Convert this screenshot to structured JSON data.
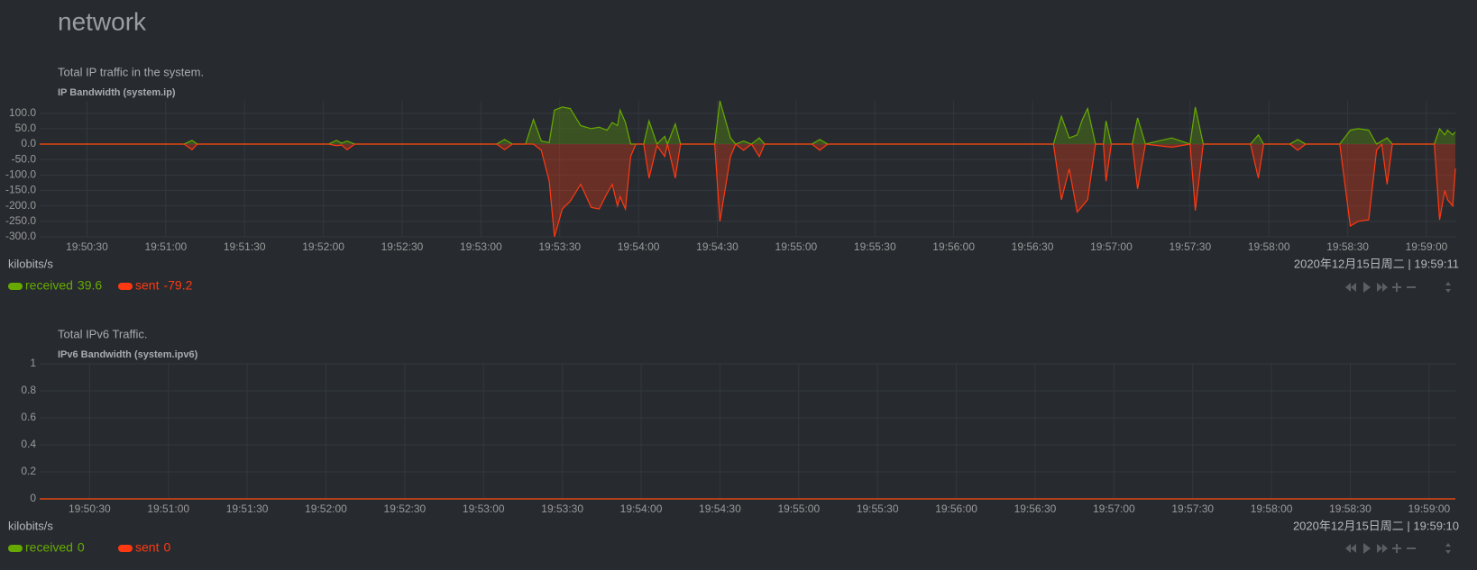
{
  "section_title": "network",
  "chart_data": [
    {
      "type": "area",
      "description": "Total IP traffic in the system.",
      "title": "IP Bandwidth (system.ip)",
      "units": "kilobits/s",
      "timestamp": "2020年12月15日周二 | 19:59:11",
      "x": [
        "19:50:12",
        "19:51:07",
        "19:51:10",
        "19:51:12",
        "19:52:02",
        "19:52:05",
        "19:52:07",
        "19:52:09",
        "19:52:12",
        "19:53:06",
        "19:53:09",
        "19:53:12",
        "19:53:17",
        "19:53:20",
        "19:53:23",
        "19:53:26",
        "19:53:28",
        "19:53:31",
        "19:53:34",
        "19:53:38",
        "19:53:42",
        "19:53:45",
        "19:53:48",
        "19:53:50",
        "19:53:52",
        "19:53:53",
        "19:53:55",
        "19:53:57",
        "19:53:59",
        "19:54:02",
        "19:54:04",
        "19:54:07",
        "19:54:10",
        "19:54:11",
        "19:54:14",
        "19:54:16",
        "19:54:29",
        "19:54:31",
        "19:54:35",
        "19:54:37",
        "19:54:40",
        "19:54:43",
        "19:54:46",
        "19:54:48",
        "19:55:06",
        "19:55:09",
        "19:55:12",
        "19:56:38",
        "19:56:41",
        "19:56:44",
        "19:56:47",
        "19:56:49",
        "19:56:51",
        "19:56:54",
        "19:56:57",
        "19:56:58",
        "19:57:00",
        "19:57:08",
        "19:57:10",
        "19:57:13",
        "19:57:23",
        "19:57:30",
        "19:57:32",
        "19:57:35",
        "19:57:53",
        "19:57:56",
        "19:57:58",
        "19:58:08",
        "19:58:11",
        "19:58:14",
        "19:58:27",
        "19:58:31",
        "19:58:34",
        "19:58:38",
        "19:58:41",
        "19:58:43",
        "19:58:45",
        "19:58:47",
        "19:59:03",
        "19:59:05",
        "19:59:07",
        "19:59:08",
        "19:59:10",
        "19:59:11"
      ],
      "xlim": [
        "19:50:12",
        "19:59:11"
      ],
      "xticks": [
        "19:50:30",
        "19:51:00",
        "19:51:30",
        "19:52:00",
        "19:52:30",
        "19:53:00",
        "19:53:30",
        "19:54:00",
        "19:54:30",
        "19:55:00",
        "19:55:30",
        "19:56:00",
        "19:56:30",
        "19:57:00",
        "19:57:30",
        "19:58:00",
        "19:58:30",
        "19:59:00"
      ],
      "ylim": [
        -300,
        140
      ],
      "yticks": [
        {
          "value": 100,
          "label": "100.0"
        },
        {
          "value": 50,
          "label": "50.0"
        },
        {
          "value": 0,
          "label": "0.0"
        },
        {
          "value": -50,
          "label": "-50.0"
        },
        {
          "value": -100,
          "label": "-100.0"
        },
        {
          "value": -150,
          "label": "-150.0"
        },
        {
          "value": -200,
          "label": "-200.0"
        },
        {
          "value": -250,
          "label": "-250.0"
        },
        {
          "value": -300,
          "label": "-300.0"
        }
      ],
      "grid": true,
      "series": [
        {
          "name": "received",
          "color": "#66aa00",
          "current": 39.6,
          "values": [
            0,
            0,
            12,
            0,
            0,
            12,
            3,
            10,
            0,
            0,
            15,
            0,
            0,
            80,
            10,
            5,
            110,
            120,
            115,
            60,
            50,
            55,
            45,
            70,
            60,
            110,
            70,
            0,
            0,
            0,
            75,
            0,
            25,
            0,
            65,
            0,
            0,
            140,
            20,
            0,
            10,
            0,
            20,
            0,
            0,
            15,
            0,
            0,
            90,
            20,
            30,
            80,
            115,
            0,
            0,
            75,
            0,
            0,
            85,
            0,
            20,
            0,
            120,
            0,
            0,
            30,
            0,
            0,
            15,
            0,
            0,
            45,
            50,
            45,
            0,
            10,
            20,
            0,
            0,
            50,
            30,
            45,
            30,
            39.6
          ]
        },
        {
          "name": "sent",
          "color": "#fe3912",
          "current": -79.2,
          "values": [
            0,
            0,
            -18,
            0,
            0,
            -5,
            -3,
            -18,
            0,
            0,
            -18,
            0,
            0,
            0,
            -20,
            -120,
            -300,
            -210,
            -185,
            -130,
            -205,
            -210,
            -160,
            -130,
            -200,
            -170,
            -210,
            -40,
            0,
            0,
            -110,
            -5,
            -40,
            0,
            -110,
            0,
            0,
            -250,
            -40,
            0,
            -20,
            0,
            -40,
            0,
            0,
            -20,
            0,
            0,
            -180,
            -80,
            -220,
            -200,
            -180,
            0,
            0,
            -120,
            0,
            0,
            -145,
            0,
            -10,
            0,
            -215,
            0,
            0,
            -110,
            0,
            0,
            -20,
            0,
            0,
            -265,
            -250,
            -245,
            -20,
            0,
            -130,
            0,
            0,
            -245,
            -150,
            -180,
            -200,
            -79.2
          ]
        }
      ]
    },
    {
      "type": "area",
      "description": "Total IPv6 Traffic.",
      "title": "IPv6 Bandwidth (system.ipv6)",
      "units": "kilobits/s",
      "timestamp": "2020年12月15日周二 | 19:59:10",
      "x": [
        "19:50:11",
        "19:59:10"
      ],
      "xlim": [
        "19:50:11",
        "19:59:10"
      ],
      "xticks": [
        "19:50:30",
        "19:51:00",
        "19:51:30",
        "19:52:00",
        "19:52:30",
        "19:53:00",
        "19:53:30",
        "19:54:00",
        "19:54:30",
        "19:55:00",
        "19:55:30",
        "19:56:00",
        "19:56:30",
        "19:57:00",
        "19:57:30",
        "19:58:00",
        "19:58:30",
        "19:59:00"
      ],
      "ylim": [
        0,
        1
      ],
      "yticks": [
        1,
        0.8,
        0.6,
        0.4,
        0.2,
        0
      ],
      "grid": true,
      "series": [
        {
          "name": "received",
          "color": "#66aa00",
          "current": 0,
          "values": [
            0,
            0
          ]
        },
        {
          "name": "sent",
          "color": "#fe3912",
          "current": 0,
          "values": [
            0,
            0
          ]
        }
      ]
    }
  ]
}
